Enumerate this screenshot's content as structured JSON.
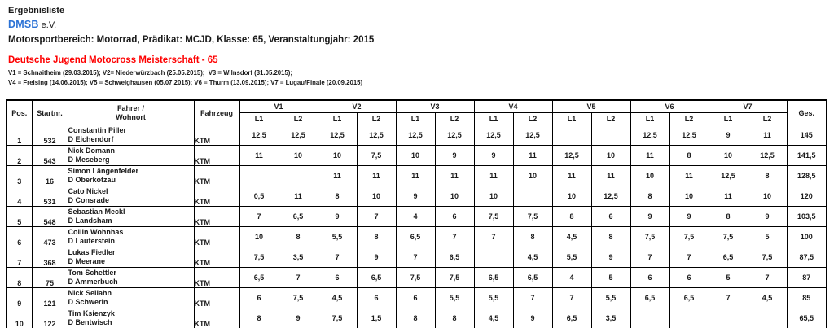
{
  "header": {
    "doc_type": "Ergebnisliste",
    "org": "DMSB",
    "org_suffix": "e.V.",
    "scope_line": "Motorsportbereich: Motorrad, Prädikat: MCJD, Klasse: 65, Veranstaltungjahr: 2015",
    "title": "Deutsche Jugend Motocross Meisterschaft - 65",
    "legend_line1": "V1 = Schnaitheim (29.03.2015); V2= Niederwürzbach (25.05.2015);  V3 = Wilnsdorf (31.05.2015);",
    "legend_line2": "V4 = Freising (14.06.2015); V5 = Schweighausen (05.07.2015); V6 = Thurm (13.09.2015); V7 = Lugau/Finale (20.09.2015)",
    "colors": {
      "org_blue": "#2b72d5",
      "title_red": "#fe0000"
    }
  },
  "table": {
    "col_headers": {
      "pos": "Pos.",
      "startnr": "Startnr.",
      "fahrer": "Fahrer /",
      "wohnort": "Wohnort",
      "fahrzeug": "Fahrzeug",
      "lap1": "L1",
      "lap2": "L2",
      "ges": "Ges."
    },
    "events": [
      "V1",
      "V2",
      "V3",
      "V4",
      "V5",
      "V6",
      "V7"
    ],
    "rows": [
      {
        "pos": "1",
        "startnr": "532",
        "fahrer": "Constantin Piller",
        "wohnort": "D Eichendorf",
        "fahrzeug": "KTM",
        "scores": [
          "12,5",
          "12,5",
          "12,5",
          "12,5",
          "12,5",
          "12,5",
          "12,5",
          "12,5",
          "",
          "",
          "12,5",
          "12,5",
          "9",
          "11"
        ],
        "ges": "145"
      },
      {
        "pos": "2",
        "startnr": "543",
        "fahrer": "Nick Domann",
        "wohnort": "D Meseberg",
        "fahrzeug": "KTM",
        "scores": [
          "11",
          "10",
          "10",
          "7,5",
          "10",
          "9",
          "9",
          "11",
          "12,5",
          "10",
          "11",
          "8",
          "10",
          "12,5"
        ],
        "ges": "141,5"
      },
      {
        "pos": "3",
        "startnr": "16",
        "fahrer": "Simon Längenfelder",
        "wohnort": "D Oberkotzau",
        "fahrzeug": "KTM",
        "scores": [
          "",
          "",
          "11",
          "11",
          "11",
          "11",
          "11",
          "10",
          "11",
          "11",
          "10",
          "11",
          "12,5",
          "8"
        ],
        "ges": "128,5"
      },
      {
        "pos": "4",
        "startnr": "531",
        "fahrer": "Cato Nickel",
        "wohnort": "D Consrade",
        "fahrzeug": "KTM",
        "scores": [
          "0,5",
          "11",
          "8",
          "10",
          "9",
          "10",
          "10",
          "",
          "10",
          "12,5",
          "8",
          "10",
          "11",
          "10"
        ],
        "ges": "120"
      },
      {
        "pos": "5",
        "startnr": "548",
        "fahrer": "Sebastian Meckl",
        "wohnort": "D Landsham",
        "fahrzeug": "KTM",
        "scores": [
          "7",
          "6,5",
          "9",
          "7",
          "4",
          "6",
          "7,5",
          "7,5",
          "8",
          "6",
          "9",
          "9",
          "8",
          "9"
        ],
        "ges": "103,5"
      },
      {
        "pos": "6",
        "startnr": "473",
        "fahrer": "Collin Wohnhas",
        "wohnort": "D Lauterstein",
        "fahrzeug": "KTM",
        "scores": [
          "10",
          "8",
          "5,5",
          "8",
          "6,5",
          "7",
          "7",
          "8",
          "4,5",
          "8",
          "7,5",
          "7,5",
          "7,5",
          "5"
        ],
        "ges": "100"
      },
      {
        "pos": "7",
        "startnr": "368",
        "fahrer": "Lukas Fiedler",
        "wohnort": "D Meerane",
        "fahrzeug": "KTM",
        "scores": [
          "7,5",
          "3,5",
          "7",
          "9",
          "7",
          "6,5",
          "",
          "4,5",
          "5,5",
          "9",
          "7",
          "7",
          "6,5",
          "7,5"
        ],
        "ges": "87,5"
      },
      {
        "pos": "8",
        "startnr": "75",
        "fahrer": "Tom Schettler",
        "wohnort": "D Ammerbuch",
        "fahrzeug": "KTM",
        "scores": [
          "6,5",
          "7",
          "6",
          "6,5",
          "7,5",
          "7,5",
          "6,5",
          "6,5",
          "4",
          "5",
          "6",
          "6",
          "5",
          "7"
        ],
        "ges": "87"
      },
      {
        "pos": "9",
        "startnr": "121",
        "fahrer": "Nick Sellahn",
        "wohnort": "D Schwerin",
        "fahrzeug": "KTM",
        "scores": [
          "6",
          "7,5",
          "4,5",
          "6",
          "6",
          "5,5",
          "5,5",
          "7",
          "7",
          "5,5",
          "6,5",
          "6,5",
          "7",
          "4,5"
        ],
        "ges": "85"
      },
      {
        "pos": "10",
        "startnr": "122",
        "fahrer": "Tim Ksienzyk",
        "wohnort": "D Bentwisch",
        "fahrzeug": "KTM",
        "scores": [
          "8",
          "9",
          "7,5",
          "1,5",
          "8",
          "8",
          "4,5",
          "9",
          "6,5",
          "3,5",
          "",
          "",
          "",
          ""
        ],
        "ges": "65,5"
      }
    ]
  }
}
